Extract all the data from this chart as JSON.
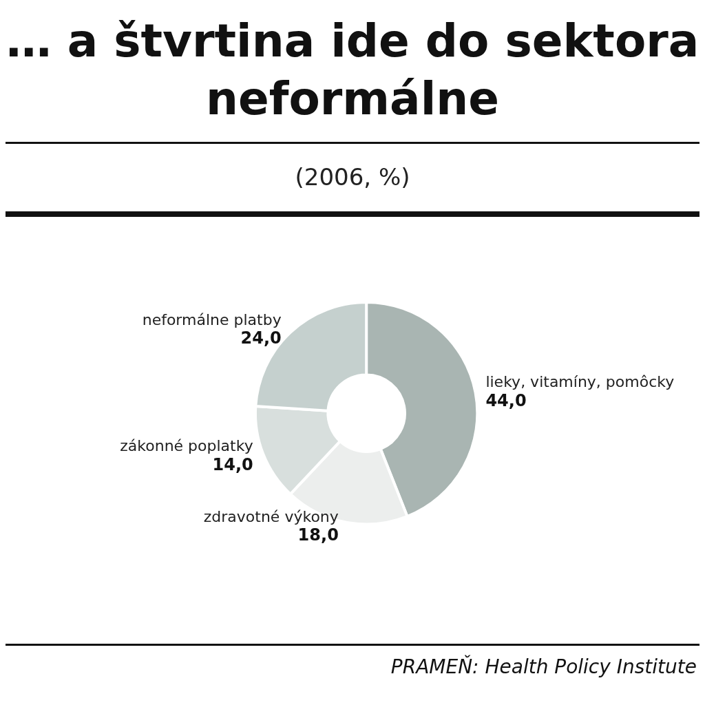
{
  "chart_data": {
    "type": "donut",
    "title": "… a štvrtina ide do sektora neformálne",
    "subtitle": "(2006, %)",
    "categories": [
      "lieky, vitamíny, pomôcky",
      "zdravotné výkony",
      "zákonné poplatky",
      "neformálne platby"
    ],
    "values": [
      44.0,
      18.0,
      14.0,
      24.0
    ],
    "value_labels": [
      "44,0",
      "18,0",
      "14,0",
      "24,0"
    ],
    "colors": [
      "#a9b5b2",
      "#eceeed",
      "#d8dfdd",
      "#c5d0ce"
    ],
    "legend": false,
    "annotations": [
      "PRAMEŇ: Health Policy Institute"
    ]
  }
}
